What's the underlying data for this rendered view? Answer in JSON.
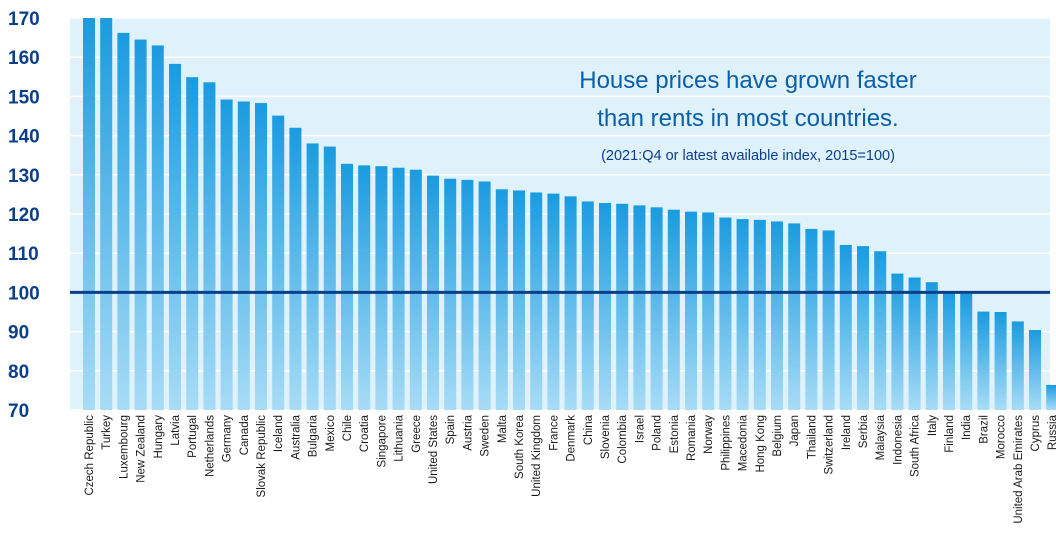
{
  "chart_data": {
    "type": "bar",
    "title_lines": [
      "House prices have grown faster",
      "than rents in most countries."
    ],
    "subtitle": "(2021:Q4 or latest available index, 2015=100)",
    "xlabel": "",
    "ylabel": "",
    "ylim": [
      70,
      170
    ],
    "yticks": [
      70,
      80,
      90,
      100,
      110,
      120,
      130,
      140,
      150,
      160,
      170
    ],
    "reference_line": 100,
    "grid": true,
    "categories": [
      "Czech Republic",
      "Turkey",
      "Luxembourg",
      "New Zealand",
      "Hungary",
      "Latvia",
      "Portugal",
      "Netherlands",
      "Germany",
      "Canada",
      "Slovak Republic",
      "Iceland",
      "Australia",
      "Bulgaria",
      "Mexico",
      "Chile",
      "Croatia",
      "Singapore",
      "Lithuania",
      "Greece",
      "United States",
      "Spain",
      "Austria",
      "Sweden",
      "Malta",
      "South Korea",
      "United Kingdom",
      "France",
      "Denmark",
      "China",
      "Slovenia",
      "Colombia",
      "Israel",
      "Poland",
      "Estonia",
      "Romania",
      "Norway",
      "Philippines",
      "Macedonia",
      "Hong Kong",
      "Belgium",
      "Japan",
      "Thailand",
      "Switzerland",
      "Ireland",
      "Serbia",
      "Malaysia",
      "Indonesia",
      "South Africa",
      "Italy",
      "Finland",
      "India",
      "Brazil",
      "Morocco",
      "United Arab Emirates",
      "Cyprus",
      "Russia"
    ],
    "values": [
      170,
      170,
      166.2,
      164.5,
      163,
      158.3,
      154.9,
      153.6,
      149.2,
      148.7,
      148.3,
      145.1,
      142,
      138,
      137.2,
      132.8,
      132.4,
      132.2,
      131.8,
      131.3,
      129.8,
      129,
      128.7,
      128.3,
      126.3,
      126,
      125.5,
      125.2,
      124.5,
      123.2,
      122.8,
      122.6,
      122.2,
      121.7,
      121.1,
      120.6,
      120.4,
      119.1,
      118.7,
      118.5,
      118.1,
      117.6,
      116.2,
      115.8,
      112.1,
      111.8,
      110.5,
      104.8,
      103.8,
      102.6,
      100.2,
      99.6,
      95.1,
      95,
      92.6,
      90.4,
      76.4
    ],
    "colors": {
      "bar_top": "#1a9be0",
      "bar_bottom": "#a8dcf6",
      "plot_bg": "#dff1fb",
      "grid": "#ffffff",
      "reference_line": "#0b3f8a",
      "axis_text": "#0b3f8a",
      "title": "#0b5fa8"
    }
  }
}
